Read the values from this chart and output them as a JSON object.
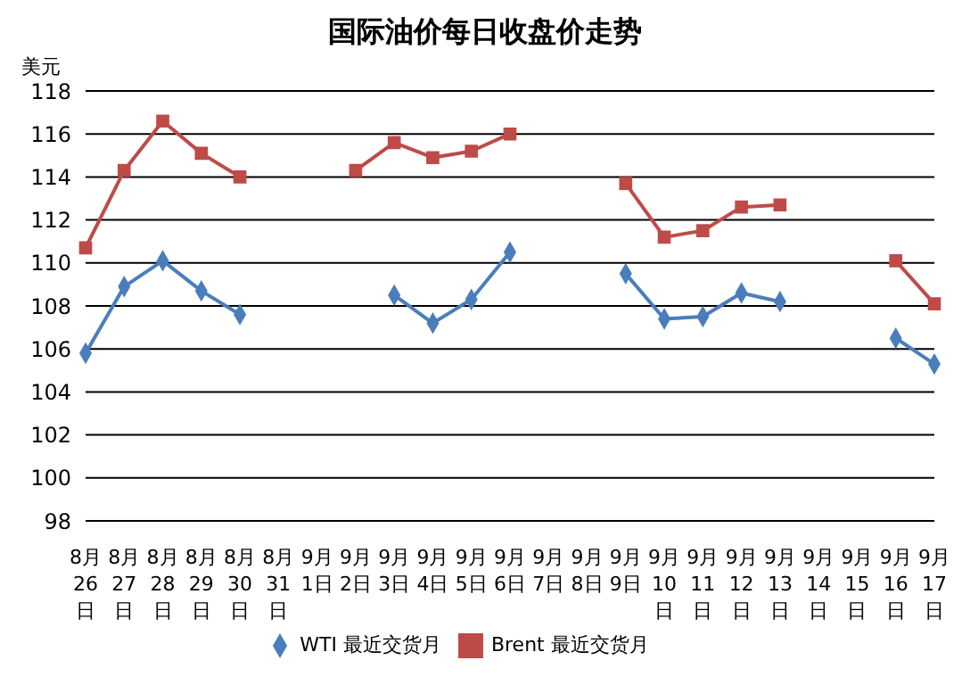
{
  "chart_data": {
    "type": "line",
    "title": "国际油价每日收盘价走势",
    "ylabel": "美元",
    "categories": [
      "8月26日",
      "8月27日",
      "8月28日",
      "8月29日",
      "8月30日",
      "8月31日",
      "9月1日",
      "9月2日",
      "9月3日",
      "9月4日",
      "9月5日",
      "9月6日",
      "9月7日",
      "9月8日",
      "9月9日",
      "9月10日",
      "9月11日",
      "9月12日",
      "9月13日",
      "9月14日",
      "9月15日",
      "9月16日",
      "9月17日"
    ],
    "series": [
      {
        "name": "WTI 最近交货月",
        "color": "#4a7ebb",
        "marker": "diamond",
        "values": [
          105.8,
          108.9,
          110.1,
          108.7,
          107.6,
          null,
          null,
          null,
          108.5,
          107.2,
          108.3,
          110.5,
          null,
          null,
          109.5,
          107.4,
          107.5,
          108.6,
          108.2,
          null,
          null,
          106.5,
          105.3
        ]
      },
      {
        "name": "Brent 最近交货月",
        "color": "#be4b48",
        "marker": "square",
        "values": [
          110.7,
          114.3,
          116.6,
          115.1,
          114.0,
          null,
          null,
          114.3,
          115.6,
          114.9,
          115.2,
          116.0,
          null,
          null,
          113.7,
          111.2,
          111.5,
          112.6,
          112.7,
          null,
          null,
          110.1,
          108.1
        ]
      }
    ],
    "ylim": [
      98,
      118
    ],
    "yticks": [
      98,
      100,
      102,
      104,
      106,
      108,
      110,
      112,
      114,
      116,
      118
    ],
    "grid": "y",
    "legend": "bottom",
    "line_style": "solid"
  }
}
